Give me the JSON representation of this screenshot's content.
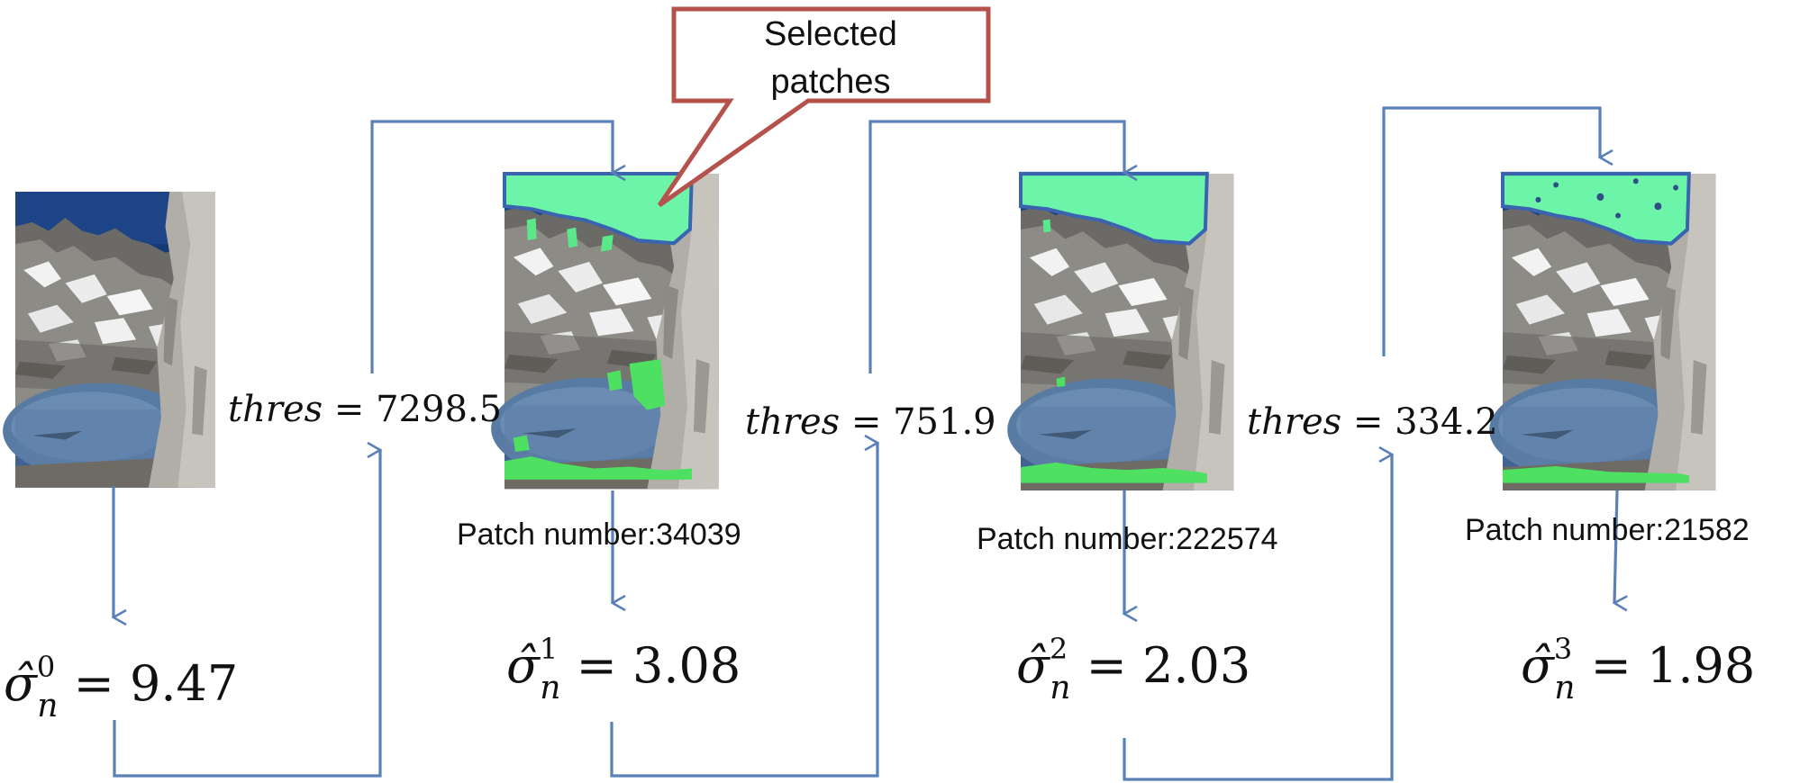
{
  "callout": {
    "line1": "Selected",
    "line2": "patches"
  },
  "stages": [
    {
      "sigma_base": "σ̂",
      "sigma_sub": "n",
      "sigma_sup": "0",
      "sigma_value": "9.47",
      "patch_label": "",
      "threshold_var": "thres",
      "threshold_value": "7298.5"
    },
    {
      "sigma_base": "σ̂",
      "sigma_sub": "n",
      "sigma_sup": "1",
      "sigma_value": "3.08",
      "patch_label": "Patch number:34039",
      "threshold_var": "thres",
      "threshold_value": "751.9"
    },
    {
      "sigma_base": "σ̂",
      "sigma_sub": "n",
      "sigma_sup": "2",
      "sigma_value": "2.03",
      "patch_label": "Patch number:222574",
      "threshold_var": "thres",
      "threshold_value": "334.2"
    },
    {
      "sigma_base": "σ̂",
      "sigma_sub": "n",
      "sigma_sup": "3",
      "sigma_value": "1.98",
      "patch_label": "Patch number:21582"
    }
  ],
  "colors": {
    "arrow": "#5b80b8",
    "callout_border": "#b5524c",
    "highlight": "#6cf4a8",
    "highlight_edge": "#3a63b0",
    "sky": "#1a3f7a",
    "rock": "#8a8a86",
    "lake": "#5a7aa0"
  },
  "icons": {
    "photo": "mountain-lake-photo-icon",
    "arrow": "arrow-head-icon"
  }
}
